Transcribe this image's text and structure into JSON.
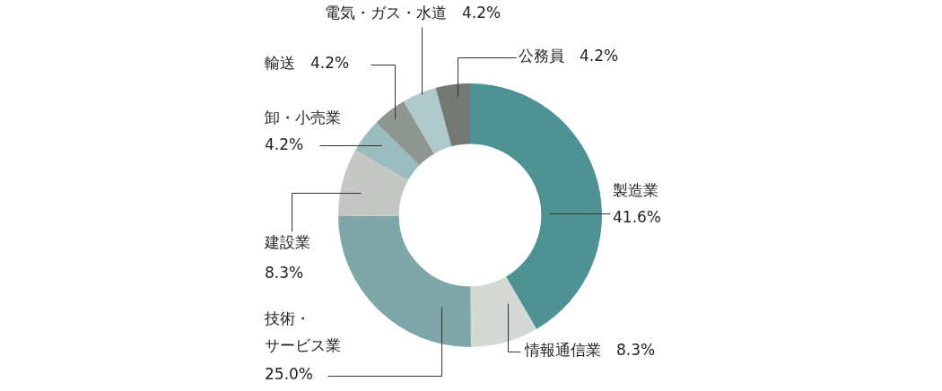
{
  "chart_data": {
    "type": "doughnut",
    "categories": [
      "製造業",
      "情報通信業",
      "技術・サービス業",
      "建設業",
      "卸・小売業",
      "輸送",
      "電気・ガス・水道",
      "公務員"
    ],
    "values": [
      41.6,
      8.3,
      25.0,
      8.3,
      4.2,
      4.2,
      4.2,
      4.2
    ],
    "value_labels": [
      "41.6%",
      "8.3%",
      "25.0%",
      "8.3%",
      "4.2%",
      "4.2%",
      "4.2%",
      "4.2%"
    ],
    "colors": [
      "#4e9294",
      "#d5d9d6",
      "#7fa7a9",
      "#c4c7c3",
      "#9bbcbe",
      "#8f9690",
      "#aec8cc",
      "#737873"
    ],
    "data_labels": true
  }
}
